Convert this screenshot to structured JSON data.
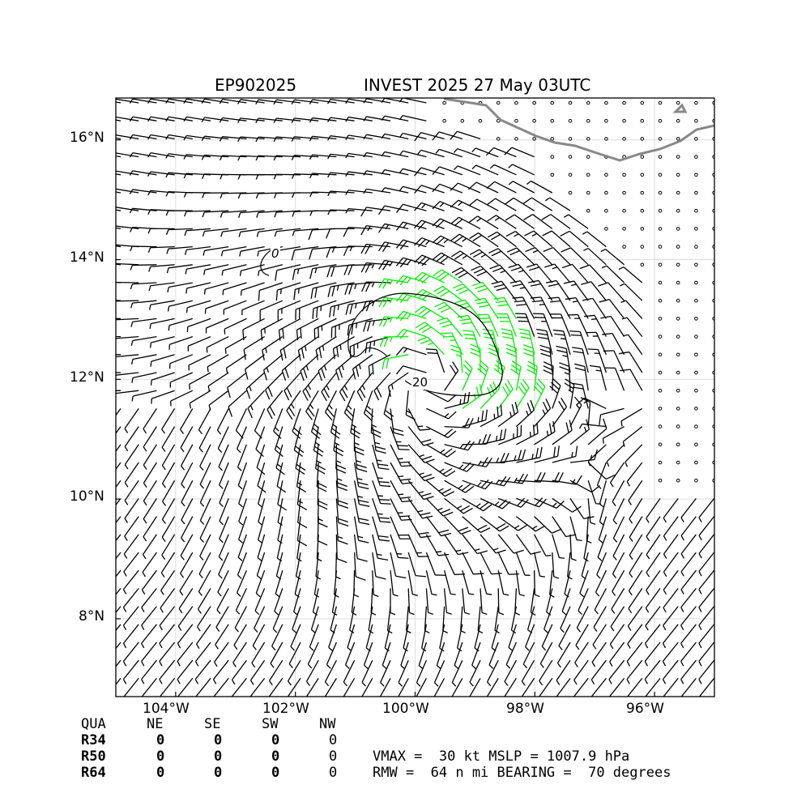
{
  "title": {
    "storm_id": "EP902025",
    "name_time": "INVEST 2025 27 May 03UTC"
  },
  "axes": {
    "lat_labels": [
      "16°N",
      "14°N",
      "12°N",
      "10°N",
      "8°N"
    ],
    "lon_labels": [
      "104°W",
      "102°W",
      "100°W",
      "98°W",
      "96°W"
    ],
    "lat_range": [
      6.7,
      16.7
    ],
    "lon_range": [
      -105.0,
      -95.0
    ],
    "grid": true
  },
  "contours": [
    {
      "label": "0",
      "color": "#000000"
    },
    {
      "label": "20",
      "color": "#000000"
    }
  ],
  "colors": {
    "barb_default": "#000000",
    "barb_strong": "#00ee00",
    "coastline": "#888888",
    "calm_marker": "#000000"
  },
  "wind_radii": {
    "headers": [
      "QUA",
      "NE",
      "SE",
      "SW",
      "NW"
    ],
    "rows": [
      {
        "label": "R34",
        "values": [
          "0",
          "0",
          "0",
          "0"
        ]
      },
      {
        "label": "R50",
        "values": [
          "0",
          "0",
          "0",
          "0"
        ]
      },
      {
        "label": "R64",
        "values": [
          "0",
          "0",
          "0",
          "0"
        ]
      }
    ]
  },
  "summary": {
    "line1": "VMAX =  30 kt MSLP = 1007.9 hPa",
    "line2": "RMW =  64 n mi BEARING =  70 degrees"
  },
  "storm": {
    "center_lat": 11.9,
    "center_lon": -99.8,
    "vmax_kt": 30,
    "rmw_nmi": 64,
    "bearing_deg": 70,
    "mslp_hpa": 1007.9
  }
}
